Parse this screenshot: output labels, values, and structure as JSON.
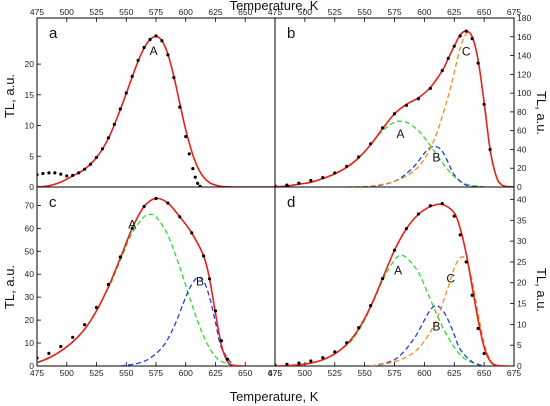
{
  "figure": {
    "top_xlabel": "Temperature, K",
    "bottom_xlabel": "Temperature, K",
    "left_ylabel_top": "TL, a.u.",
    "left_ylabel_bottom": "TL, a.u.",
    "right_ylabel_top": "TL, a.u.",
    "right_ylabel_bottom": "TL, a.u.",
    "colors": {
      "experiment": "#000000",
      "fit": "#e8201c",
      "A": "#2bdc2b",
      "B": "#1f3fe0",
      "C": "#f5891f"
    }
  },
  "chart_data": [
    {
      "panel": "a",
      "type": "line",
      "xlim": [
        475,
        675
      ],
      "ylim": [
        0,
        27.5
      ],
      "xticks": [
        475,
        500,
        525,
        550,
        575,
        600,
        625,
        650
      ],
      "yticks": [
        0,
        5,
        10,
        15,
        20
      ],
      "annotations": [
        {
          "text": "A",
          "x": 573,
          "y": 21.5
        }
      ],
      "experiment_x": [
        475,
        480,
        485,
        490,
        495,
        500,
        505,
        510,
        515,
        520,
        525,
        530,
        535,
        540,
        545,
        550,
        555,
        560,
        565,
        570,
        575,
        580,
        585,
        590,
        595,
        600,
        603,
        606,
        608,
        610,
        612
      ],
      "experiment_y": [
        2.0,
        2.2,
        2.3,
        2.3,
        2.1,
        1.8,
        1.9,
        2.3,
        2.9,
        3.7,
        4.8,
        6.2,
        8.0,
        10.2,
        12.7,
        15.3,
        18.0,
        20.6,
        22.7,
        24.0,
        24.6,
        23.8,
        21.5,
        17.8,
        13.0,
        8.2,
        5.4,
        3.0,
        1.6,
        0.6,
        0.1
      ],
      "series": [
        {
          "name": "fit",
          "style": "solid",
          "x": [
            475,
            485,
            495,
            505,
            515,
            525,
            535,
            545,
            555,
            560,
            565,
            570,
            575,
            580,
            585,
            590,
            595,
            600,
            605,
            610,
            615,
            620,
            625,
            630,
            640,
            675
          ],
          "y": [
            0.0,
            0.2,
            0.8,
            1.8,
            2.9,
            4.8,
            7.9,
            12.6,
            17.9,
            20.5,
            22.6,
            24.0,
            24.5,
            23.8,
            21.6,
            18.0,
            13.6,
            9.3,
            5.8,
            3.2,
            1.6,
            0.7,
            0.3,
            0.1,
            0.0,
            0.0
          ]
        }
      ]
    },
    {
      "panel": "b",
      "type": "line",
      "xlim": [
        475,
        675
      ],
      "ylim": [
        0,
        180
      ],
      "xticks": [
        475,
        500,
        525,
        550,
        575,
        600,
        625,
        650,
        675
      ],
      "yticks": [
        0,
        20,
        40,
        60,
        80,
        100,
        120,
        140,
        160,
        180
      ],
      "annotations": [
        {
          "text": "A",
          "x": 580,
          "y": 52
        },
        {
          "text": "B",
          "x": 610,
          "y": 27
        },
        {
          "text": "C",
          "x": 635,
          "y": 140
        }
      ],
      "experiment_x": [
        475,
        485,
        495,
        505,
        515,
        525,
        535,
        545,
        555,
        565,
        575,
        585,
        595,
        605,
        615,
        620,
        625,
        630,
        635,
        640,
        645,
        650,
        655
      ],
      "experiment_y": [
        1,
        2,
        4,
        7,
        10,
        15,
        22,
        32,
        46,
        63,
        78,
        87,
        94,
        105,
        124,
        137,
        150,
        161,
        166,
        158,
        132,
        88,
        40
      ],
      "series": [
        {
          "name": "fit",
          "style": "solid",
          "x": [
            475,
            485,
            495,
            505,
            515,
            525,
            535,
            545,
            555,
            565,
            575,
            585,
            595,
            605,
            615,
            620,
            625,
            630,
            635,
            640,
            645,
            650,
            655,
            660,
            665,
            675
          ],
          "y": [
            0,
            1,
            3,
            5,
            9,
            14,
            21,
            31,
            45,
            62,
            78,
            88,
            95,
            106,
            124,
            137,
            150,
            162,
            166,
            160,
            135,
            90,
            40,
            12,
            2,
            0
          ]
        },
        {
          "name": "A",
          "style": "dashed",
          "x": [
            475,
            495,
            515,
            535,
            545,
            555,
            565,
            575,
            580,
            585,
            595,
            605,
            615,
            625,
            635,
            650
          ],
          "y": [
            0,
            3,
            9,
            21,
            31,
            45,
            60,
            69,
            70,
            69,
            60,
            44,
            26,
            11,
            3,
            0
          ]
        },
        {
          "name": "B",
          "style": "dashed",
          "x": [
            555,
            575,
            590,
            600,
            605,
            610,
            615,
            620,
            625,
            635,
            650
          ],
          "y": [
            0,
            6,
            20,
            36,
            42,
            43,
            38,
            26,
            13,
            2,
            0
          ]
        },
        {
          "name": "C",
          "style": "dashed",
          "x": [
            535,
            555,
            575,
            590,
            600,
            610,
            620,
            625,
            630,
            635,
            640,
            645,
            650,
            655,
            660,
            665
          ],
          "y": [
            0,
            1,
            6,
            16,
            30,
            56,
            97,
            122,
            148,
            163,
            160,
            135,
            90,
            40,
            12,
            2
          ]
        }
      ]
    },
    {
      "panel": "c",
      "type": "line",
      "xlim": [
        475,
        675
      ],
      "ylim": [
        0,
        78
      ],
      "xticks": [
        475,
        500,
        525,
        550,
        575,
        600,
        625,
        650,
        675
      ],
      "yticks": [
        0,
        10,
        20,
        30,
        40,
        50,
        60,
        70
      ],
      "annotations": [
        {
          "text": "A",
          "x": 555,
          "y": 60
        },
        {
          "text": "B",
          "x": 612,
          "y": 35
        }
      ],
      "experiment_x": [
        475,
        485,
        495,
        505,
        515,
        525,
        535,
        545,
        555,
        565,
        575,
        585,
        595,
        605,
        615,
        620,
        625,
        630,
        635
      ],
      "experiment_y": [
        3.5,
        5.5,
        8.5,
        12.5,
        18.0,
        25.5,
        35.5,
        47.5,
        60.0,
        69.5,
        73.0,
        71.0,
        65.0,
        58.0,
        48.0,
        38.0,
        24.0,
        11.0,
        3.0
      ],
      "series": [
        {
          "name": "fit",
          "style": "solid",
          "x": [
            475,
            485,
            495,
            505,
            515,
            525,
            535,
            545,
            555,
            565,
            575,
            585,
            595,
            605,
            615,
            620,
            625,
            630,
            635,
            640,
            650
          ],
          "y": [
            1.5,
            3.5,
            6.5,
            10.5,
            16.0,
            24.0,
            34.5,
            47.0,
            60.0,
            69.5,
            73.0,
            71.0,
            65.0,
            58.0,
            48.0,
            38.0,
            23.0,
            9.0,
            2.0,
            0.3,
            0.0
          ]
        },
        {
          "name": "A",
          "style": "dashed",
          "x": [
            475,
            495,
            515,
            535,
            545,
            555,
            565,
            570,
            575,
            585,
            595,
            605,
            615,
            625,
            635,
            645
          ],
          "y": [
            1.5,
            6.5,
            16.0,
            34.0,
            46.0,
            58.0,
            65.0,
            66.0,
            65.0,
            57.0,
            43.0,
            27.0,
            13.0,
            4.0,
            1.0,
            0.0
          ]
        },
        {
          "name": "B",
          "style": "dashed",
          "x": [
            545,
            565,
            580,
            590,
            600,
            605,
            610,
            615,
            620,
            625,
            630,
            640
          ],
          "y": [
            0.0,
            2.0,
            8.0,
            17.0,
            30.0,
            35.5,
            38.5,
            37.0,
            30.0,
            19.0,
            8.0,
            0.0
          ]
        }
      ]
    },
    {
      "panel": "d",
      "type": "line",
      "xlim": [
        475,
        675
      ],
      "ylim": [
        0,
        43
      ],
      "xticks": [
        475,
        500,
        525,
        550,
        575,
        600,
        625,
        650,
        675
      ],
      "yticks": [
        0,
        5,
        10,
        15,
        20,
        25,
        30,
        35,
        40
      ],
      "annotations": [
        {
          "text": "A",
          "x": 578,
          "y": 22
        },
        {
          "text": "B",
          "x": 610,
          "y": 8.5
        },
        {
          "text": "C",
          "x": 622,
          "y": 20
        }
      ],
      "experiment_x": [
        475,
        485,
        495,
        505,
        515,
        525,
        535,
        545,
        555,
        565,
        575,
        585,
        595,
        605,
        615,
        625,
        630,
        635,
        640,
        645,
        650
      ],
      "experiment_y": [
        0.2,
        0.4,
        0.7,
        1.2,
        2.0,
        3.4,
        5.6,
        9.2,
        14.5,
        21.0,
        27.8,
        33.0,
        36.5,
        38.5,
        39.0,
        36.0,
        31.5,
        25.0,
        17.0,
        9.0,
        3.0
      ],
      "series": [
        {
          "name": "fit",
          "style": "solid",
          "x": [
            475,
            485,
            495,
            505,
            515,
            525,
            535,
            545,
            555,
            565,
            575,
            585,
            595,
            605,
            615,
            625,
            630,
            635,
            640,
            645,
            650,
            655,
            660,
            670
          ],
          "y": [
            0.0,
            0.1,
            0.3,
            0.7,
            1.5,
            2.9,
            5.2,
            8.9,
            14.3,
            21.0,
            27.8,
            33.0,
            36.4,
            38.3,
            38.8,
            36.8,
            33.0,
            27.0,
            19.0,
            11.0,
            4.5,
            1.2,
            0.2,
            0.0
          ]
        },
        {
          "name": "A",
          "style": "dashed",
          "x": [
            475,
            495,
            515,
            535,
            545,
            555,
            565,
            575,
            580,
            585,
            595,
            605,
            615,
            625,
            635,
            650
          ],
          "y": [
            0.0,
            0.3,
            1.5,
            5.0,
            8.5,
            14.0,
            20.5,
            25.5,
            26.5,
            26.0,
            22.5,
            16.0,
            9.5,
            4.5,
            1.5,
            0.0
          ]
        },
        {
          "name": "B",
          "style": "dashed",
          "x": [
            555,
            575,
            590,
            600,
            605,
            610,
            615,
            620,
            625,
            630,
            640,
            650
          ],
          "y": [
            0.0,
            1.5,
            6.0,
            11.0,
            13.5,
            14.5,
            13.5,
            11.0,
            7.5,
            4.0,
            1.0,
            0.0
          ]
        },
        {
          "name": "C",
          "style": "dashed",
          "x": [
            555,
            575,
            590,
            600,
            610,
            620,
            625,
            630,
            635,
            640,
            645,
            650,
            655,
            660
          ],
          "y": [
            0.0,
            1.0,
            3.0,
            6.0,
            11.0,
            19.0,
            23.5,
            26.0,
            25.5,
            20.5,
            12.5,
            5.5,
            1.5,
            0.0
          ]
        }
      ]
    }
  ]
}
